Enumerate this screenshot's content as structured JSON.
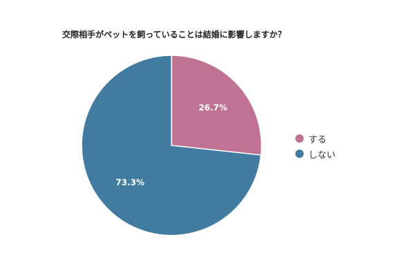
{
  "chart_data": {
    "type": "pie",
    "title": "交際相手がペットを飼っていることは結婚に影響しますか？",
    "categories": [
      "する",
      "しない"
    ],
    "values": [
      26.7,
      73.3
    ],
    "labels": [
      "26.7%",
      "73.3%"
    ],
    "colors": [
      "#c07295",
      "#417ba0"
    ],
    "legend_position": "right"
  }
}
